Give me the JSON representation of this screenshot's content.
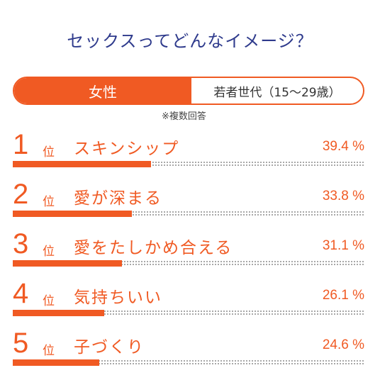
{
  "title": "セックスってどんなイメージ？",
  "segment": {
    "gender": "女性",
    "age_group": "若者世代（15〜29歳）"
  },
  "note": "※複数回答",
  "rank_suffix": "位",
  "colors": {
    "accent": "#f05a23",
    "title": "#2e3a8c"
  },
  "chart_data": {
    "type": "bar",
    "orientation": "horizontal",
    "categories": [
      "スキンシップ",
      "愛が深まる",
      "愛をたしかめ合える",
      "気持ちいい",
      "子づくり"
    ],
    "values": [
      39.4,
      33.8,
      31.1,
      26.1,
      24.6
    ],
    "value_labels": [
      "39.4 %",
      "33.8 %",
      "31.1 %",
      "26.1 %",
      "24.6 %"
    ],
    "ranks": [
      "1",
      "2",
      "3",
      "4",
      "5"
    ],
    "xlim": [
      0,
      100
    ]
  }
}
